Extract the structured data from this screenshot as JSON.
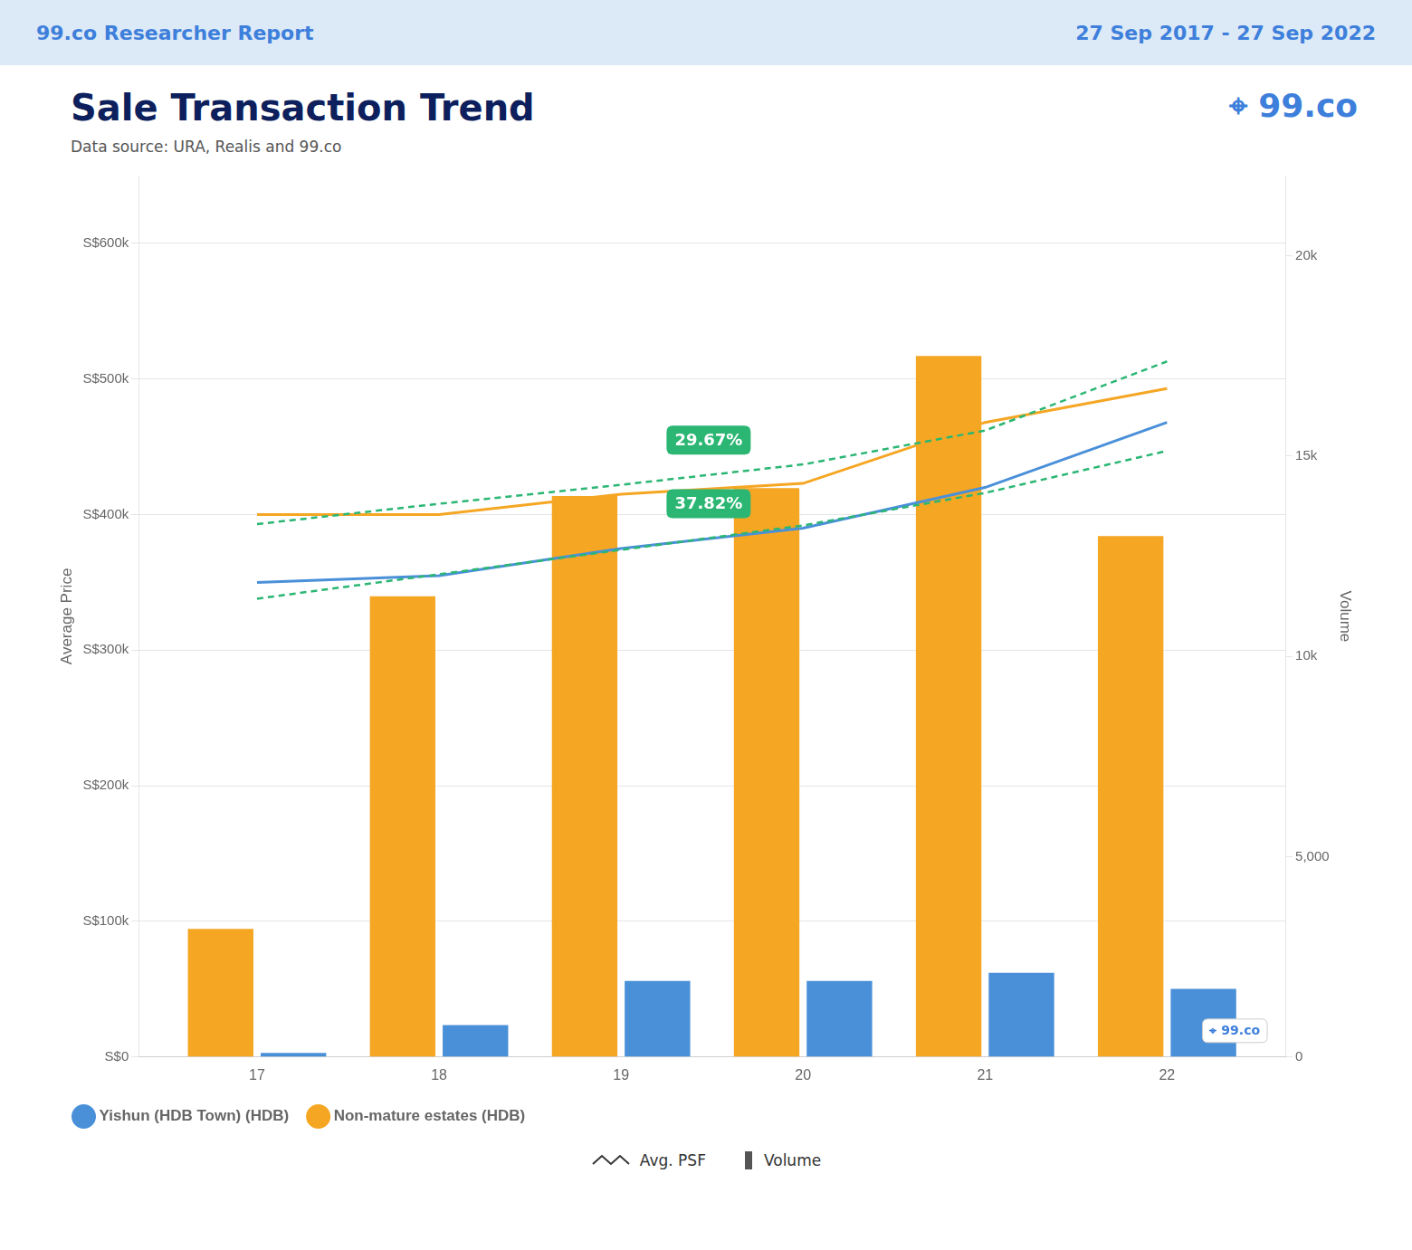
{
  "chart_data": {
    "type": "bar",
    "title": "Sale Transaction Trend",
    "title_color": "#0d1f5c",
    "subtitle": "Data source: URA, Realis and 99.co",
    "header": {
      "left": "99.co Researcher Report",
      "right": "27 Sep 2017 - 27 Sep 2022",
      "color": "#3d7fdb",
      "background": "#dce9f7"
    },
    "logo": "⌖ 99.co",
    "watermark": "⌖ 99.co",
    "x": [
      17,
      18,
      19,
      20,
      21,
      22
    ],
    "xlim": [
      16.35,
      22.65
    ],
    "xticks": [
      17,
      18,
      19,
      20,
      21,
      22
    ],
    "ylabel": "Average Price",
    "y2label": "Volume",
    "ylim": [
      0,
      650000
    ],
    "yticks": [
      {
        "value": 0,
        "label": "S$0"
      },
      {
        "value": 100000,
        "label": "S$100k"
      },
      {
        "value": 200000,
        "label": "S$200k"
      },
      {
        "value": 300000,
        "label": "S$300k"
      },
      {
        "value": 400000,
        "label": "S$400k"
      },
      {
        "value": 500000,
        "label": "S$500k"
      },
      {
        "value": 600000,
        "label": "S$600k"
      }
    ],
    "y2lim": [
      0,
      22000
    ],
    "y2ticks": [
      0,
      {
        "value": 5000,
        "label": "5,000"
      },
      {
        "value": 10000,
        "label": "10k"
      },
      {
        "value": 15000,
        "label": "15k"
      },
      {
        "value": 20000,
        "label": "20k"
      }
    ],
    "grid": true,
    "legend": "bottom",
    "legend_kinds": [
      {
        "name": "Avg. PSF",
        "type": "line"
      },
      {
        "name": "Volume",
        "type": "bar"
      }
    ],
    "series": [
      {
        "type": "bar",
        "axis": "y2",
        "color": "#f5a623",
        "values": [
          3200,
          11500,
          14000,
          14200,
          17500,
          13000
        ]
      },
      {
        "type": "bar",
        "axis": "y2",
        "color": "#4a90d9",
        "values": [
          100,
          800,
          1900,
          1900,
          2100,
          1700
        ]
      },
      {
        "type": "line",
        "line_style": "dashed",
        "color": "#2bb673",
        "values": [
          338000,
          356000,
          374000,
          392000,
          416000,
          447000
        ]
      },
      {
        "type": "line",
        "line_style": "dashed",
        "color": "#2bb673",
        "values": [
          393000,
          408000,
          422000,
          437000,
          462000,
          513000
        ]
      },
      {
        "type": "line",
        "name": "Yishun (HDB Town) (HDB)",
        "color": "#4a90d9",
        "values": [
          350000,
          355000,
          375000,
          390000,
          420000,
          468000
        ]
      },
      {
        "type": "line",
        "name": "Non-mature estates (HDB)",
        "color": "#f5a623",
        "values": [
          400000,
          400000,
          415000,
          423000,
          468000,
          493000
        ]
      }
    ],
    "annotations": [
      {
        "text": "29.67%",
        "x": 19.25,
        "y": 455000,
        "color": "#2bb673"
      },
      {
        "text": "37.82%",
        "x": 19.25,
        "y": 408000,
        "color": "#2bb673"
      }
    ]
  }
}
